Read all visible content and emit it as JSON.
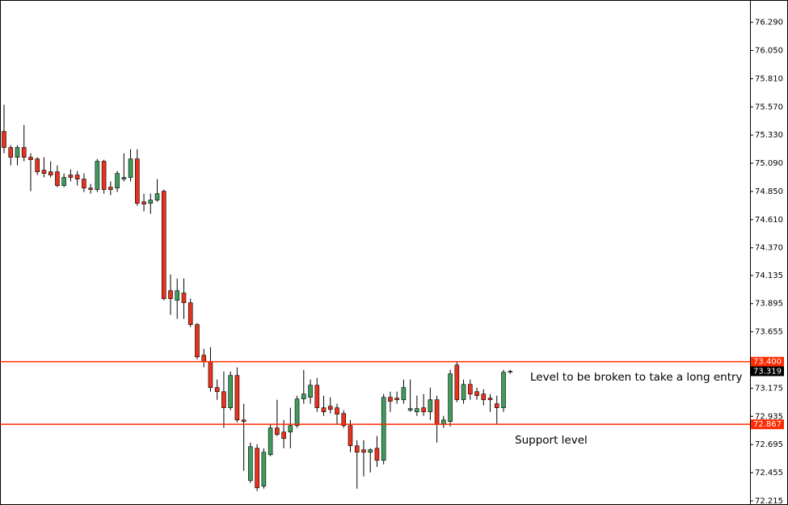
{
  "chart_data": {
    "type": "candlestick",
    "up_color": "#3f9c5c",
    "down_color": "#e8321e",
    "ylim": [
      72.18,
      76.48
    ],
    "yticks": [
      {
        "value": 76.29,
        "label": "76.290"
      },
      {
        "value": 76.05,
        "label": "76.050"
      },
      {
        "value": 75.81,
        "label": "75.810"
      },
      {
        "value": 75.57,
        "label": "75.570"
      },
      {
        "value": 75.33,
        "label": "75.330"
      },
      {
        "value": 75.09,
        "label": "75.090"
      },
      {
        "value": 74.85,
        "label": "74.850"
      },
      {
        "value": 74.61,
        "label": "74.610"
      },
      {
        "value": 74.37,
        "label": "74.370"
      },
      {
        "value": 74.135,
        "label": "74.135"
      },
      {
        "value": 73.895,
        "label": "73.895"
      },
      {
        "value": 73.655,
        "label": "73.655"
      },
      {
        "value": 73.175,
        "label": "73.175"
      },
      {
        "value": 72.935,
        "label": "72.935"
      },
      {
        "value": 72.695,
        "label": "72.695"
      },
      {
        "value": 72.455,
        "label": "72.455"
      },
      {
        "value": 72.215,
        "label": "72.215"
      }
    ],
    "levels": [
      {
        "value": 73.4,
        "label": "73.400",
        "color": "#ff2a00"
      },
      {
        "value": 72.867,
        "label": "72.867",
        "color": "#ff2a00"
      }
    ],
    "last_price": {
      "value": 73.319,
      "label": "73.319"
    },
    "annotations": [
      {
        "text": "Level to be broken to take a long entry"
      },
      {
        "text": "Support level"
      }
    ],
    "ohlc": [
      [
        75.361,
        75.588,
        75.175,
        75.224
      ],
      [
        75.224,
        75.244,
        75.072,
        75.141
      ],
      [
        75.141,
        75.244,
        75.072,
        75.224
      ],
      [
        75.224,
        75.416,
        75.107,
        75.141
      ],
      [
        75.141,
        75.175,
        74.852,
        75.12
      ],
      [
        75.127,
        75.141,
        74.99,
        75.017
      ],
      [
        75.031,
        75.141,
        74.969,
        75.003
      ],
      [
        75.017,
        75.107,
        74.969,
        74.99
      ],
      [
        75.017,
        75.072,
        74.886,
        74.9
      ],
      [
        74.9,
        75.003,
        74.886,
        74.969
      ],
      [
        74.99,
        75.038,
        74.935,
        74.969
      ],
      [
        74.99,
        75.024,
        74.9,
        74.955
      ],
      [
        74.955,
        75.003,
        74.845,
        74.879
      ],
      [
        74.879,
        74.914,
        74.831,
        74.866
      ],
      [
        74.866,
        75.127,
        74.845,
        75.107
      ],
      [
        75.107,
        75.12,
        74.831,
        74.866
      ],
      [
        74.886,
        74.935,
        74.818,
        74.866
      ],
      [
        74.879,
        75.024,
        74.845,
        75.003
      ],
      [
        74.955,
        75.175,
        74.935,
        74.969
      ],
      [
        74.969,
        75.21,
        74.935,
        75.127
      ],
      [
        75.127,
        75.21,
        74.728,
        74.749
      ],
      [
        74.762,
        74.831,
        74.68,
        74.742
      ],
      [
        74.749,
        74.831,
        74.659,
        74.776
      ],
      [
        74.776,
        74.955,
        74.762,
        74.831
      ],
      [
        74.852,
        74.866,
        73.923,
        73.937
      ],
      [
        74.005,
        74.143,
        73.799,
        73.937
      ],
      [
        73.923,
        74.109,
        73.765,
        74.005
      ],
      [
        73.985,
        74.109,
        73.765,
        73.902
      ],
      [
        73.902,
        73.937,
        73.696,
        73.716
      ],
      [
        73.716,
        73.73,
        73.421,
        73.441
      ],
      [
        73.455,
        73.51,
        73.352,
        73.4
      ],
      [
        73.4,
        73.524,
        73.145,
        73.18
      ],
      [
        73.18,
        73.248,
        73.076,
        73.145
      ],
      [
        73.145,
        73.317,
        72.836,
        73.008
      ],
      [
        73.008,
        73.317,
        72.987,
        73.283
      ],
      [
        73.283,
        73.352,
        72.884,
        72.904
      ],
      [
        72.904,
        73.042,
        72.471,
        72.891
      ],
      [
        72.388,
        72.712,
        72.368,
        72.677
      ],
      [
        72.663,
        72.698,
        72.299,
        72.326
      ],
      [
        72.34,
        72.663,
        72.319,
        72.629
      ],
      [
        72.608,
        72.87,
        72.595,
        72.836
      ],
      [
        72.836,
        73.076,
        72.767,
        72.78
      ],
      [
        72.801,
        72.904,
        72.663,
        72.746
      ],
      [
        72.801,
        73.008,
        72.663,
        72.856
      ],
      [
        72.856,
        73.111,
        72.836,
        73.083
      ],
      [
        73.083,
        73.331,
        73.042,
        73.125
      ],
      [
        73.097,
        73.248,
        73.042,
        73.2
      ],
      [
        73.2,
        73.262,
        72.973,
        73.008
      ],
      [
        73.008,
        73.111,
        72.939,
        72.973
      ],
      [
        73.021,
        73.097,
        72.959,
        72.994
      ],
      [
        73.008,
        73.042,
        72.87,
        72.953
      ],
      [
        72.959,
        72.987,
        72.836,
        72.856
      ],
      [
        72.856,
        72.904,
        72.629,
        72.684
      ],
      [
        72.684,
        72.732,
        72.319,
        72.629
      ],
      [
        72.65,
        72.732,
        72.423,
        72.629
      ],
      [
        72.629,
        72.663,
        72.457,
        72.65
      ],
      [
        72.663,
        72.767,
        72.505,
        72.56
      ],
      [
        72.56,
        73.125,
        72.526,
        73.097
      ],
      [
        73.097,
        73.145,
        72.973,
        73.063
      ],
      [
        73.09,
        73.145,
        73.042,
        73.076
      ],
      [
        73.076,
        73.248,
        73.042,
        73.18
      ],
      [
        72.987,
        73.248,
        72.973,
        73.001
      ],
      [
        72.973,
        73.111,
        72.939,
        73.001
      ],
      [
        73.008,
        73.125,
        72.939,
        72.973
      ],
      [
        72.973,
        73.18,
        72.904,
        73.076
      ],
      [
        73.076,
        73.111,
        72.712,
        72.87
      ],
      [
        72.87,
        72.939,
        72.836,
        72.904
      ],
      [
        72.891,
        73.331,
        72.849,
        73.297
      ],
      [
        73.372,
        73.4,
        73.056,
        73.076
      ],
      [
        73.076,
        73.248,
        73.042,
        73.207
      ],
      [
        73.207,
        73.248,
        73.076,
        73.125
      ],
      [
        73.145,
        73.18,
        73.076,
        73.111
      ],
      [
        73.125,
        73.166,
        73.028,
        73.076
      ],
      [
        73.09,
        73.125,
        72.973,
        73.076
      ],
      [
        73.042,
        73.111,
        72.87,
        73.008
      ],
      [
        73.008,
        73.331,
        72.973,
        73.31
      ],
      [
        73.319,
        73.331,
        73.297,
        73.319
      ]
    ]
  }
}
